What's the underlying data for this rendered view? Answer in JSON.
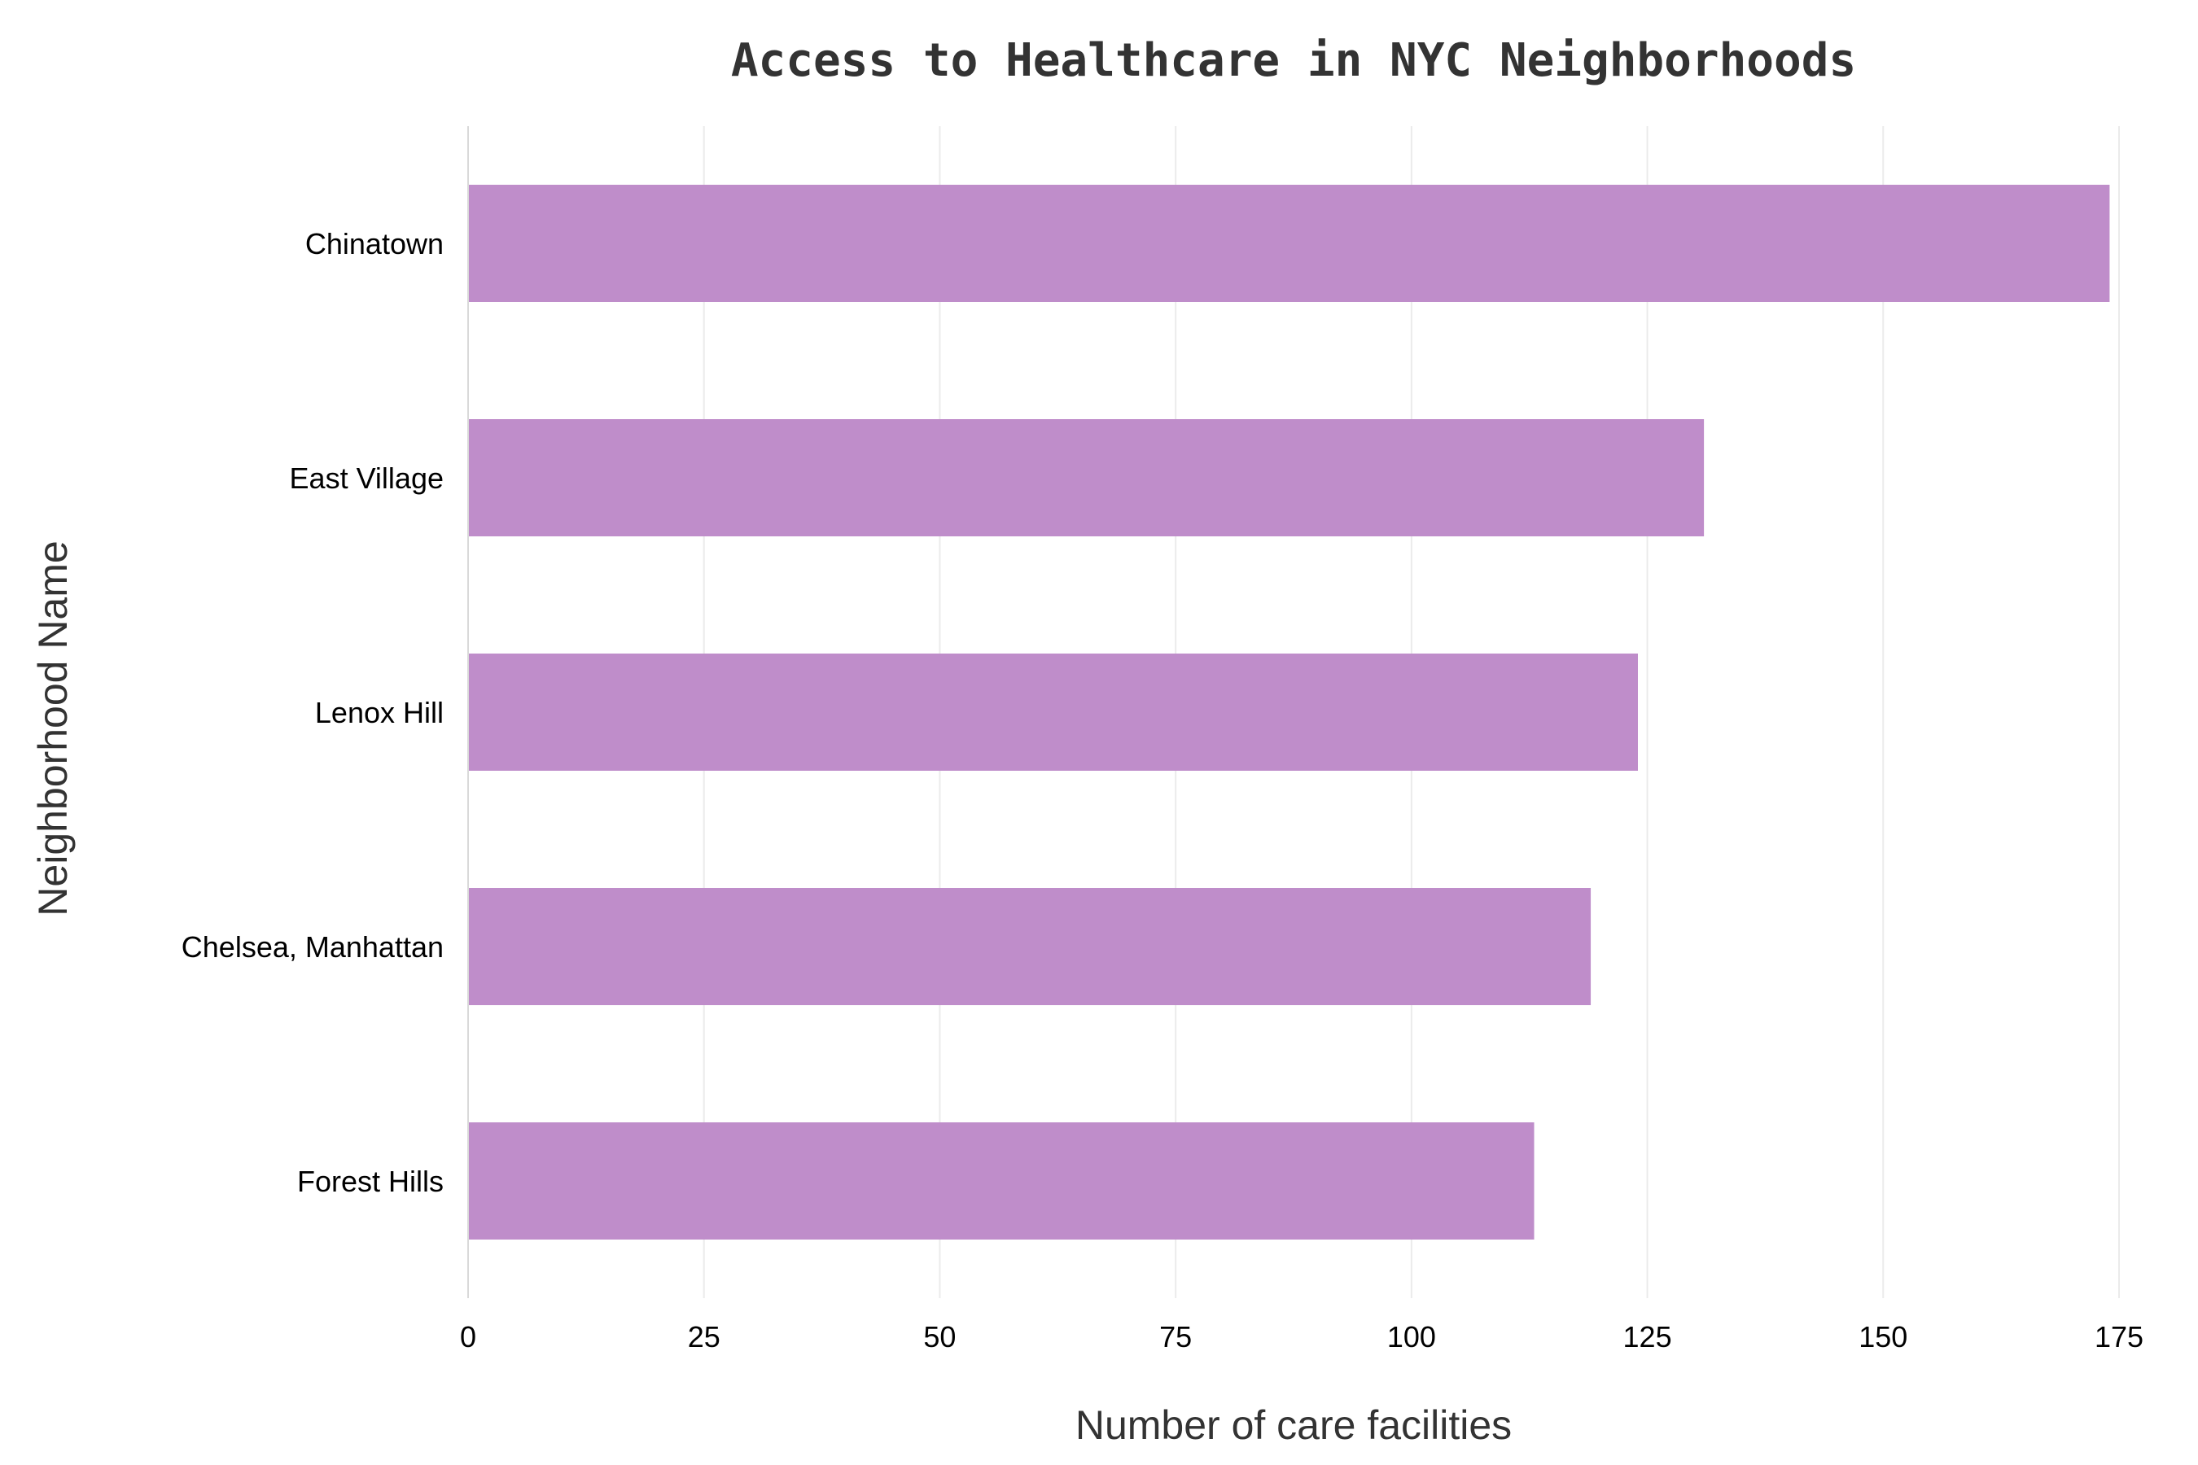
{
  "chart_data": {
    "type": "bar",
    "orientation": "horizontal",
    "title": "Access to Healthcare in NYC Neighborhoods",
    "xlabel": "Number of care facilities",
    "ylabel": "Neighborhood Name",
    "categories": [
      "Chinatown",
      "East Village",
      "Lenox Hill",
      "Chelsea, Manhattan",
      "Forest Hills"
    ],
    "values": [
      174,
      131,
      124,
      119,
      113
    ],
    "xlim": [
      0,
      175
    ],
    "xticks": [
      0,
      25,
      50,
      75,
      100,
      125,
      150,
      175
    ],
    "grid": "vertical",
    "legend": "none",
    "bar_color": "#bf8dca"
  }
}
